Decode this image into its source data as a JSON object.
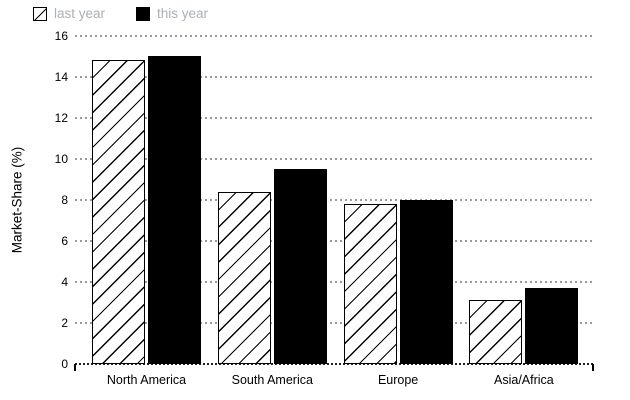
{
  "chart_data": {
    "type": "bar",
    "title": "",
    "xlabel": "",
    "ylabel": "Market-Share (%)",
    "categories": [
      "North America",
      "South America",
      "Europe",
      "Asia/Africa"
    ],
    "series": [
      {
        "name": "last year",
        "style": "hatched",
        "values": [
          14.8,
          8.4,
          7.8,
          3.1
        ]
      },
      {
        "name": "this year",
        "style": "solid",
        "values": [
          15.0,
          9.5,
          8.0,
          3.7
        ]
      }
    ],
    "ylim": [
      0,
      16
    ],
    "yticks": [
      0,
      2,
      4,
      6,
      8,
      10,
      12,
      14,
      16
    ],
    "grid": "horizontal-dotted",
    "legend_position": "top-left"
  },
  "legend": {
    "items": [
      {
        "label": "last year",
        "swatch": "hatched"
      },
      {
        "label": "this year",
        "swatch": "solid-black"
      }
    ]
  },
  "colors": {
    "background": "#ffffff",
    "bar_solid": "#000000",
    "bar_hatch_bg": "#ffffff",
    "bar_hatch_line": "#000000",
    "legend_text": "#a9b0b7",
    "gridline": "#999999",
    "baseline": "#222222",
    "axis_text": "#000000"
  }
}
